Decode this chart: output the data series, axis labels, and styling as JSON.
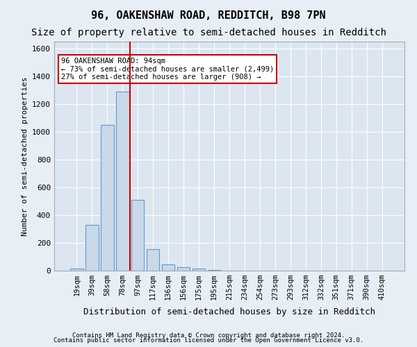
{
  "title": "96, OAKENSHAW ROAD, REDDITCH, B98 7PN",
  "subtitle": "Size of property relative to semi-detached houses in Redditch",
  "xlabel": "Distribution of semi-detached houses by size in Redditch",
  "ylabel": "Number of semi-detached properties",
  "footer1": "Contains HM Land Registry data © Crown copyright and database right 2024.",
  "footer2": "Contains public sector information licensed under the Open Government Licence v3.0.",
  "bar_labels": [
    "19sqm",
    "39sqm",
    "58sqm",
    "78sqm",
    "97sqm",
    "117sqm",
    "136sqm",
    "156sqm",
    "175sqm",
    "195sqm",
    "215sqm",
    "234sqm",
    "254sqm",
    "273sqm",
    "293sqm",
    "312sqm",
    "332sqm",
    "351sqm",
    "371sqm",
    "390sqm",
    "410sqm"
  ],
  "bar_values": [
    15,
    330,
    1050,
    1290,
    510,
    155,
    45,
    25,
    15,
    5,
    0,
    0,
    0,
    0,
    0,
    0,
    0,
    0,
    0,
    0,
    0
  ],
  "bar_color": "#c9d9e8",
  "bar_edge_color": "#5b9bd5",
  "property_line_x": 4,
  "annotation_text1": "96 OAKENSHAW ROAD: 94sqm",
  "annotation_text2": "← 73% of semi-detached houses are smaller (2,499)",
  "annotation_text3": "27% of semi-detached houses are larger (908) →",
  "annotation_box_color": "#ffffff",
  "annotation_box_edge": "#cc0000",
  "vline_color": "#cc0000",
  "ylim": [
    0,
    1650
  ],
  "yticks": [
    0,
    200,
    400,
    600,
    800,
    1000,
    1200,
    1400,
    1600
  ],
  "bg_color": "#e8eef5",
  "plot_bg_color": "#dce6f0",
  "grid_color": "#ffffff",
  "title_fontsize": 11,
  "subtitle_fontsize": 10
}
